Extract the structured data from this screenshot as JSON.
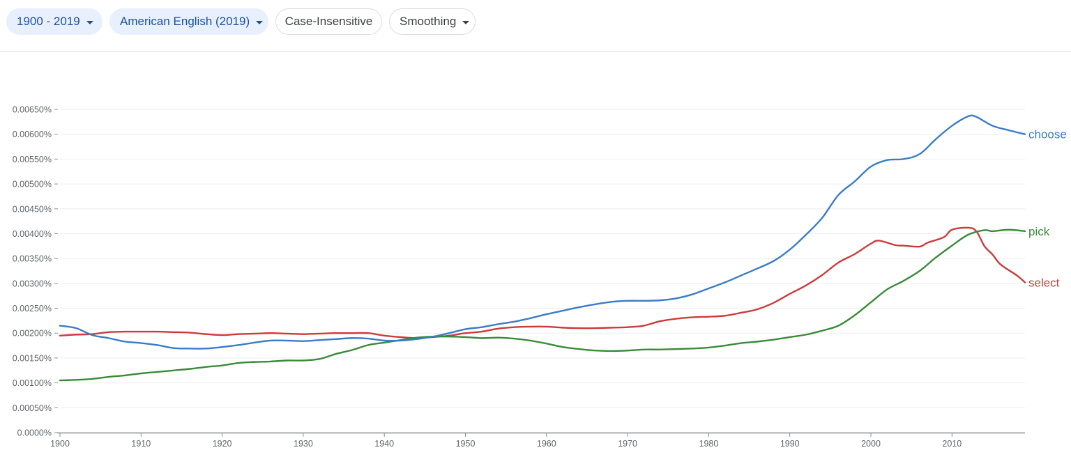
{
  "toolbar": {
    "year_range": "1900 - 2019",
    "corpus": "American English (2019)",
    "case": "Case-Insensitive",
    "smoothing": "Smoothing"
  },
  "colors": {
    "choose": "#3a7cc8",
    "pick": "#3a8a3a",
    "select": "#cc3b3b",
    "grid": "#eeeeee",
    "axis": "#8f8f8f"
  },
  "chart_data": {
    "type": "line",
    "title": "",
    "xlabel": "",
    "ylabel": "",
    "xlim": [
      1900,
      2019
    ],
    "ylim": [
      0,
      0.0065
    ],
    "y_ticks": [
      {
        "value": 0.0,
        "label": "0.0000%"
      },
      {
        "value": 0.0005,
        "label": "0.00050%"
      },
      {
        "value": 0.001,
        "label": "0.00100%"
      },
      {
        "value": 0.0015,
        "label": "0.00150%"
      },
      {
        "value": 0.002,
        "label": "0.00200%"
      },
      {
        "value": 0.0025,
        "label": "0.00250%"
      },
      {
        "value": 0.003,
        "label": "0.00300%"
      },
      {
        "value": 0.0035,
        "label": "0.00350%"
      },
      {
        "value": 0.004,
        "label": "0.00400%"
      },
      {
        "value": 0.0045,
        "label": "0.00450%"
      },
      {
        "value": 0.005,
        "label": "0.00500%"
      },
      {
        "value": 0.0055,
        "label": "0.00550%"
      },
      {
        "value": 0.006,
        "label": "0.00600%"
      },
      {
        "value": 0.0065,
        "label": "0.00650%"
      }
    ],
    "x_ticks": [
      {
        "value": 1900,
        "label": "1900"
      },
      {
        "value": 1910,
        "label": "1910"
      },
      {
        "value": 1920,
        "label": "1920"
      },
      {
        "value": 1930,
        "label": "1930"
      },
      {
        "value": 1940,
        "label": "1940"
      },
      {
        "value": 1950,
        "label": "1950"
      },
      {
        "value": 1960,
        "label": "1960"
      },
      {
        "value": 1970,
        "label": "1970"
      },
      {
        "value": 1980,
        "label": "1980"
      },
      {
        "value": 1990,
        "label": "1990"
      },
      {
        "value": 2000,
        "label": "2000"
      },
      {
        "value": 2010,
        "label": "2010"
      }
    ],
    "series": [
      {
        "name": "choose",
        "key": "choose",
        "label": "choose",
        "points": [
          [
            1900,
            0.00215
          ],
          [
            1902,
            0.0021
          ],
          [
            1904,
            0.00196
          ],
          [
            1906,
            0.0019
          ],
          [
            1908,
            0.00183
          ],
          [
            1910,
            0.0018
          ],
          [
            1912,
            0.00176
          ],
          [
            1914,
            0.0017
          ],
          [
            1916,
            0.00169
          ],
          [
            1918,
            0.00169
          ],
          [
            1920,
            0.00172
          ],
          [
            1922,
            0.00176
          ],
          [
            1924,
            0.00181
          ],
          [
            1926,
            0.00185
          ],
          [
            1928,
            0.00185
          ],
          [
            1930,
            0.00184
          ],
          [
            1932,
            0.00186
          ],
          [
            1934,
            0.00188
          ],
          [
            1936,
            0.0019
          ],
          [
            1938,
            0.00189
          ],
          [
            1940,
            0.00185
          ],
          [
            1942,
            0.00185
          ],
          [
            1944,
            0.00188
          ],
          [
            1946,
            0.00193
          ],
          [
            1948,
            0.002
          ],
          [
            1950,
            0.00208
          ],
          [
            1952,
            0.00212
          ],
          [
            1954,
            0.00218
          ],
          [
            1956,
            0.00223
          ],
          [
            1958,
            0.0023
          ],
          [
            1960,
            0.00238
          ],
          [
            1962,
            0.00245
          ],
          [
            1964,
            0.00252
          ],
          [
            1966,
            0.00258
          ],
          [
            1968,
            0.00263
          ],
          [
            1970,
            0.00265
          ],
          [
            1972,
            0.00265
          ],
          [
            1974,
            0.00266
          ],
          [
            1976,
            0.0027
          ],
          [
            1978,
            0.00278
          ],
          [
            1980,
            0.0029
          ],
          [
            1982,
            0.00302
          ],
          [
            1984,
            0.00316
          ],
          [
            1986,
            0.0033
          ],
          [
            1988,
            0.00345
          ],
          [
            1990,
            0.00368
          ],
          [
            1992,
            0.00398
          ],
          [
            1994,
            0.00432
          ],
          [
            1996,
            0.00478
          ],
          [
            1998,
            0.00505
          ],
          [
            2000,
            0.00535
          ],
          [
            2002,
            0.00548
          ],
          [
            2004,
            0.0055
          ],
          [
            2006,
            0.0056
          ],
          [
            2008,
            0.0059
          ],
          [
            2010,
            0.00617
          ],
          [
            2012,
            0.00636
          ],
          [
            2013,
            0.00635
          ],
          [
            2015,
            0.00617
          ],
          [
            2017,
            0.00608
          ],
          [
            2019,
            0.006
          ]
        ]
      },
      {
        "name": "pick",
        "key": "pick",
        "label": "pick",
        "points": [
          [
            1900,
            0.00105
          ],
          [
            1902,
            0.00106
          ],
          [
            1904,
            0.00108
          ],
          [
            1906,
            0.00112
          ],
          [
            1908,
            0.00115
          ],
          [
            1910,
            0.00119
          ],
          [
            1912,
            0.00122
          ],
          [
            1914,
            0.00125
          ],
          [
            1916,
            0.00128
          ],
          [
            1918,
            0.00132
          ],
          [
            1920,
            0.00135
          ],
          [
            1922,
            0.0014
          ],
          [
            1924,
            0.00142
          ],
          [
            1926,
            0.00143
          ],
          [
            1928,
            0.00145
          ],
          [
            1930,
            0.00145
          ],
          [
            1932,
            0.00148
          ],
          [
            1934,
            0.00158
          ],
          [
            1936,
            0.00166
          ],
          [
            1938,
            0.00176
          ],
          [
            1940,
            0.00181
          ],
          [
            1942,
            0.00186
          ],
          [
            1944,
            0.00191
          ],
          [
            1946,
            0.00193
          ],
          [
            1948,
            0.00193
          ],
          [
            1950,
            0.00192
          ],
          [
            1952,
            0.0019
          ],
          [
            1954,
            0.00191
          ],
          [
            1956,
            0.00189
          ],
          [
            1958,
            0.00185
          ],
          [
            1960,
            0.00179
          ],
          [
            1962,
            0.00172
          ],
          [
            1964,
            0.00168
          ],
          [
            1966,
            0.00165
          ],
          [
            1968,
            0.00164
          ],
          [
            1970,
            0.00165
          ],
          [
            1972,
            0.00167
          ],
          [
            1974,
            0.00167
          ],
          [
            1976,
            0.00168
          ],
          [
            1978,
            0.00169
          ],
          [
            1980,
            0.00171
          ],
          [
            1982,
            0.00175
          ],
          [
            1984,
            0.0018
          ],
          [
            1986,
            0.00183
          ],
          [
            1988,
            0.00187
          ],
          [
            1990,
            0.00192
          ],
          [
            1992,
            0.00197
          ],
          [
            1994,
            0.00205
          ],
          [
            1996,
            0.00215
          ],
          [
            1998,
            0.00236
          ],
          [
            2000,
            0.00262
          ],
          [
            2002,
            0.00288
          ],
          [
            2004,
            0.00305
          ],
          [
            2006,
            0.00325
          ],
          [
            2008,
            0.00352
          ],
          [
            2010,
            0.00376
          ],
          [
            2012,
            0.00398
          ],
          [
            2014,
            0.00407
          ],
          [
            2015,
            0.00405
          ],
          [
            2017,
            0.00408
          ],
          [
            2019,
            0.00405
          ]
        ]
      },
      {
        "name": "select",
        "key": "select",
        "label": "select",
        "points": [
          [
            1900,
            0.00195
          ],
          [
            1902,
            0.00197
          ],
          [
            1904,
            0.00198
          ],
          [
            1906,
            0.00202
          ],
          [
            1908,
            0.00203
          ],
          [
            1910,
            0.00203
          ],
          [
            1912,
            0.00203
          ],
          [
            1914,
            0.00202
          ],
          [
            1916,
            0.00201
          ],
          [
            1918,
            0.00198
          ],
          [
            1920,
            0.00196
          ],
          [
            1922,
            0.00198
          ],
          [
            1924,
            0.00199
          ],
          [
            1926,
            0.002
          ],
          [
            1928,
            0.00199
          ],
          [
            1930,
            0.00198
          ],
          [
            1932,
            0.00199
          ],
          [
            1934,
            0.002
          ],
          [
            1936,
            0.002
          ],
          [
            1938,
            0.002
          ],
          [
            1940,
            0.00195
          ],
          [
            1942,
            0.00192
          ],
          [
            1944,
            0.0019
          ],
          [
            1946,
            0.00192
          ],
          [
            1948,
            0.00195
          ],
          [
            1950,
            0.002
          ],
          [
            1952,
            0.00203
          ],
          [
            1954,
            0.00209
          ],
          [
            1956,
            0.00212
          ],
          [
            1958,
            0.00213
          ],
          [
            1960,
            0.00213
          ],
          [
            1962,
            0.00211
          ],
          [
            1964,
            0.0021
          ],
          [
            1966,
            0.0021
          ],
          [
            1968,
            0.00211
          ],
          [
            1970,
            0.00212
          ],
          [
            1972,
            0.00215
          ],
          [
            1974,
            0.00224
          ],
          [
            1976,
            0.00229
          ],
          [
            1978,
            0.00232
          ],
          [
            1980,
            0.00233
          ],
          [
            1982,
            0.00235
          ],
          [
            1984,
            0.00241
          ],
          [
            1986,
            0.00248
          ],
          [
            1988,
            0.00261
          ],
          [
            1990,
            0.00279
          ],
          [
            1992,
            0.00296
          ],
          [
            1994,
            0.00317
          ],
          [
            1996,
            0.00342
          ],
          [
            1998,
            0.00359
          ],
          [
            2000,
            0.0038
          ],
          [
            2001,
            0.00386
          ],
          [
            2003,
            0.00377
          ],
          [
            2004,
            0.00376
          ],
          [
            2006,
            0.00374
          ],
          [
            2007,
            0.00382
          ],
          [
            2009,
            0.00393
          ],
          [
            2010,
            0.00408
          ],
          [
            2012,
            0.00412
          ],
          [
            2013,
            0.00405
          ],
          [
            2014,
            0.00375
          ],
          [
            2015,
            0.00358
          ],
          [
            2016,
            0.00338
          ],
          [
            2018,
            0.00316
          ],
          [
            2019,
            0.00302
          ]
        ]
      }
    ]
  }
}
